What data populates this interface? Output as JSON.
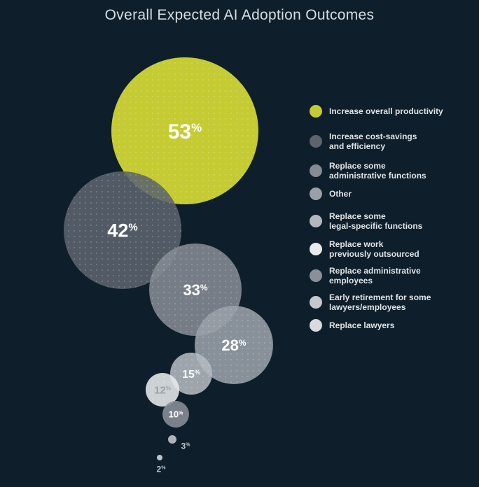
{
  "title": "Overall Expected AI Adoption Outcomes",
  "chart_data": {
    "type": "bubble",
    "title": "Overall Expected AI Adoption Outcomes",
    "unit": "%",
    "series": [
      {
        "label": "Increase overall productivity",
        "value": 53,
        "color": "#c5cb32",
        "text_color": "#ffffff"
      },
      {
        "label": "Increase cost-savings\nand efficiency",
        "value": 42,
        "color": "#5c646d",
        "text_color": "#ffffff"
      },
      {
        "label": "Replace some\nadministrative functions",
        "value": 33,
        "color": "#858b93",
        "text_color": "#ffffff"
      },
      {
        "label": "Other",
        "value": 28,
        "color": "#9aa0a8",
        "text_color": "#ffffff"
      },
      {
        "label": "Replace some\nlegal-specific functions",
        "value": 15,
        "color": "#b3b8bf",
        "text_color": "#ffffff"
      },
      {
        "label": "Replace work\npreviously outsourced",
        "value": 12,
        "color": "#e7eaec",
        "text_color": "#9aa0a8"
      },
      {
        "label": "Replace administrative\nemployees",
        "value": 10,
        "color": "#8a9098",
        "text_color": "#ffffff"
      },
      {
        "label": "Early retirement for some\nlawyers/employees",
        "value": 3,
        "color": "#c4c8cd",
        "text_color": "#c4c8cd"
      },
      {
        "label": "Replace lawyers",
        "value": 2,
        "color": "#d8dbde",
        "text_color": "#c4c8cd"
      }
    ]
  }
}
